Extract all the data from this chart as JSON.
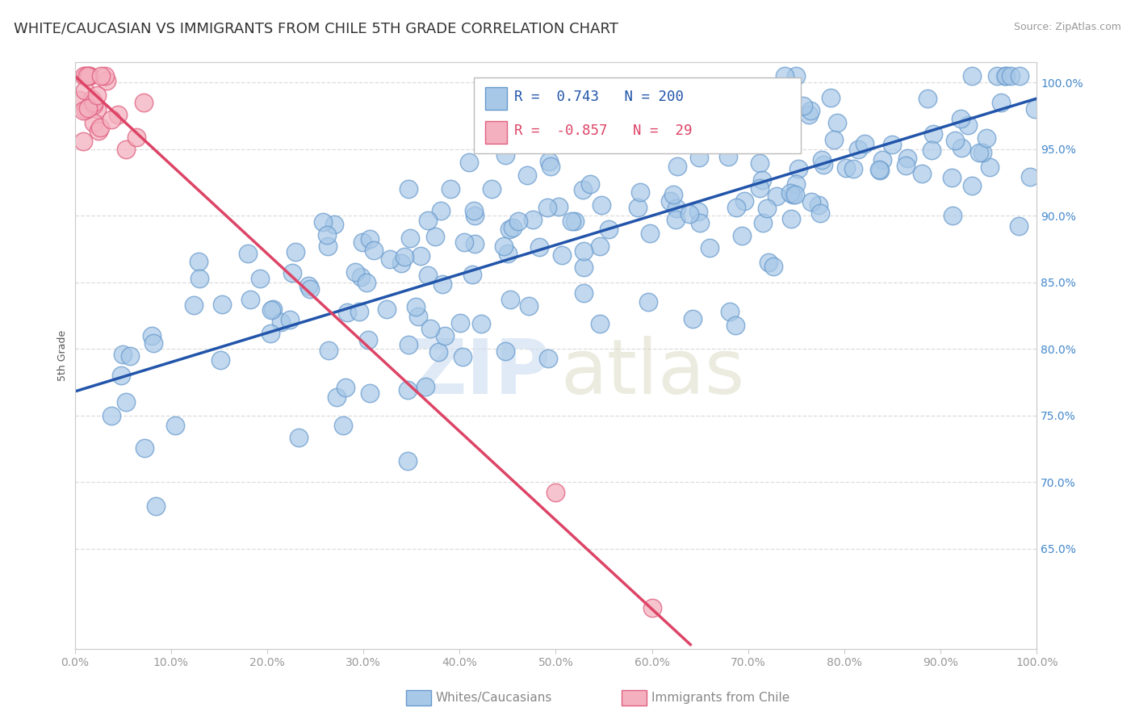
{
  "title": "WHITE/CAUCASIAN VS IMMIGRANTS FROM CHILE 5TH GRADE CORRELATION CHART",
  "source": "Source: ZipAtlas.com",
  "ylabel": "5th Grade",
  "blue_R": 0.743,
  "blue_N": 200,
  "pink_R": -0.857,
  "pink_N": 29,
  "blue_color": "#a8c8e8",
  "blue_edge": "#6699cc",
  "blue_line_color": "#2255aa",
  "pink_color": "#f4b0be",
  "pink_edge": "#e06080",
  "pink_line_color": "#dd4466",
  "legend_text_blue": "#2255aa",
  "legend_text_pink": "#dd4466",
  "right_axis_color": "#4488cc",
  "title_fontsize": 13,
  "axis_label_fontsize": 9,
  "tick_fontsize": 10,
  "xlim": [
    0.0,
    1.0
  ],
  "ylim": [
    0.575,
    1.015
  ],
  "right_yticks": [
    0.65,
    0.7,
    0.75,
    0.8,
    0.85,
    0.9,
    0.95,
    1.0
  ],
  "right_yticklabels": [
    "65.0%",
    "70.0%",
    "75.0%",
    "80.0%",
    "85.0%",
    "90.0%",
    "95.0%",
    "100.0%"
  ],
  "xtick_labels": [
    "0.0%",
    "10.0%",
    "20.0%",
    "30.0%",
    "40.0%",
    "50.0%",
    "60.0%",
    "70.0%",
    "80.0%",
    "90.0%",
    "100.0%"
  ],
  "xtick_vals": [
    0.0,
    0.1,
    0.2,
    0.3,
    0.4,
    0.5,
    0.6,
    0.7,
    0.8,
    0.9,
    1.0
  ],
  "grid_color": "#dddddd",
  "background_color": "#ffffff",
  "blue_trendline_x": [
    0.0,
    1.0
  ],
  "blue_trendline_y": [
    0.768,
    0.988
  ],
  "pink_trendline_x": [
    0.0,
    0.64
  ],
  "pink_trendline_y": [
    1.005,
    0.578
  ]
}
